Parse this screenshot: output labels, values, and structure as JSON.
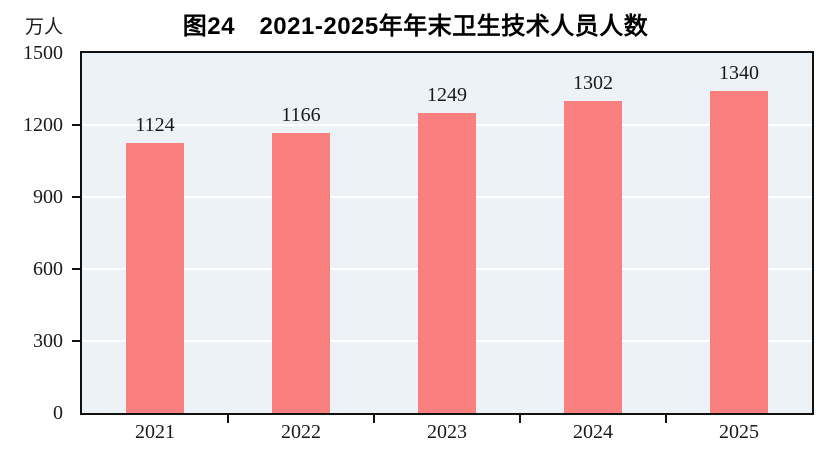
{
  "chart_data": {
    "type": "bar",
    "title": "图24　2021-2025年年末卫生技术人员人数",
    "unit_label": "万人",
    "categories": [
      "2021",
      "2022",
      "2023",
      "2024",
      "2025"
    ],
    "values": [
      1124,
      1166,
      1249,
      1302,
      1340
    ],
    "xlabel": "",
    "ylabel": "万人",
    "ylim": [
      0,
      1500
    ],
    "yticks": [
      0,
      300,
      600,
      900,
      1200,
      1500
    ],
    "grid": true,
    "legend": false,
    "colors": {
      "bar": "#fa8080",
      "plot_bg": "#edf2f6",
      "gridline": "#ffffff",
      "frame": "#111111",
      "text": "#1a1a1a"
    }
  }
}
